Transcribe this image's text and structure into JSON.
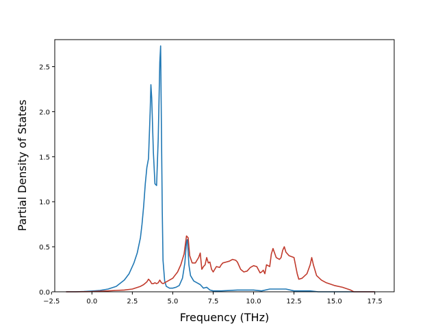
{
  "chart_data": {
    "type": "line",
    "xlabel": "Frequency (THz)",
    "ylabel": "Partial Density of States",
    "xlim": [
      -2.3,
      18.7
    ],
    "ylim": [
      0.0,
      2.8
    ],
    "xticks": [
      "−2.5",
      "0.0",
      "2.5",
      "5.0",
      "7.5",
      "10.0",
      "12.5",
      "15.0",
      "17.5"
    ],
    "xtick_values": [
      -2.5,
      0.0,
      2.5,
      5.0,
      7.5,
      10.0,
      12.5,
      15.0,
      17.5
    ],
    "yticks": [
      "0.0",
      "0.5",
      "1.0",
      "1.5",
      "2.0",
      "2.5"
    ],
    "ytick_values": [
      0.0,
      0.5,
      1.0,
      1.5,
      2.0,
      2.5
    ],
    "grid": false,
    "series": [
      {
        "color": "#1f77b4",
        "x": [
          -1.6,
          -1.0,
          -0.5,
          0.0,
          0.5,
          1.0,
          1.5,
          2.0,
          2.3,
          2.6,
          2.8,
          3.0,
          3.1,
          3.2,
          3.3,
          3.4,
          3.5,
          3.6,
          3.65,
          3.7,
          3.8,
          3.9,
          4.0,
          4.1,
          4.2,
          4.25,
          4.3,
          4.35,
          4.4,
          4.5,
          4.6,
          4.8,
          5.0,
          5.2,
          5.4,
          5.6,
          5.75,
          5.85,
          5.9,
          5.95,
          6.0,
          6.1,
          6.3,
          6.5,
          6.7,
          6.9,
          7.1,
          7.3,
          7.5,
          8.0,
          9.0,
          10.0,
          10.5,
          11.0,
          11.5,
          12.0,
          12.5,
          13.0,
          13.5,
          14.0,
          15.0,
          16.0,
          17.5
        ],
        "y": [
          0.0,
          0.0,
          0.003,
          0.008,
          0.015,
          0.03,
          0.06,
          0.13,
          0.2,
          0.32,
          0.43,
          0.6,
          0.75,
          0.95,
          1.2,
          1.38,
          1.48,
          2.0,
          2.3,
          2.15,
          1.55,
          1.2,
          1.18,
          1.7,
          2.55,
          2.73,
          1.8,
          0.9,
          0.35,
          0.12,
          0.06,
          0.04,
          0.04,
          0.05,
          0.07,
          0.15,
          0.32,
          0.55,
          0.58,
          0.45,
          0.3,
          0.18,
          0.12,
          0.1,
          0.08,
          0.04,
          0.05,
          0.02,
          0.01,
          0.01,
          0.02,
          0.02,
          0.01,
          0.03,
          0.03,
          0.03,
          0.01,
          0.01,
          0.01,
          0.0,
          0.0,
          0.0,
          0.0
        ]
      },
      {
        "color": "#c0392b",
        "x": [
          -1.6,
          -1.0,
          0.0,
          1.0,
          1.5,
          2.0,
          2.5,
          3.0,
          3.2,
          3.4,
          3.5,
          3.6,
          3.7,
          3.8,
          3.9,
          4.0,
          4.1,
          4.2,
          4.3,
          4.4,
          4.5,
          4.7,
          5.0,
          5.3,
          5.5,
          5.7,
          5.85,
          5.95,
          6.05,
          6.2,
          6.4,
          6.6,
          6.7,
          6.8,
          6.9,
          7.0,
          7.1,
          7.2,
          7.3,
          7.4,
          7.5,
          7.7,
          7.9,
          8.0,
          8.1,
          8.3,
          8.5,
          8.7,
          8.9,
          9.0,
          9.2,
          9.4,
          9.6,
          9.8,
          10.0,
          10.2,
          10.4,
          10.5,
          10.6,
          10.7,
          10.8,
          11.0,
          11.1,
          11.2,
          11.4,
          11.6,
          11.7,
          11.8,
          11.9,
          12.0,
          12.2,
          12.5,
          12.7,
          12.8,
          13.0,
          13.3,
          13.5,
          13.6,
          13.7,
          13.9,
          14.2,
          14.5,
          15.0,
          15.5,
          16.0,
          16.2,
          17.5
        ],
        "y": [
          0.0,
          0.0,
          0.002,
          0.01,
          0.015,
          0.02,
          0.03,
          0.06,
          0.08,
          0.11,
          0.14,
          0.12,
          0.09,
          0.09,
          0.1,
          0.09,
          0.1,
          0.13,
          0.1,
          0.09,
          0.1,
          0.12,
          0.15,
          0.22,
          0.3,
          0.42,
          0.62,
          0.6,
          0.4,
          0.32,
          0.32,
          0.38,
          0.43,
          0.25,
          0.28,
          0.3,
          0.38,
          0.32,
          0.33,
          0.25,
          0.22,
          0.28,
          0.27,
          0.3,
          0.32,
          0.33,
          0.34,
          0.36,
          0.35,
          0.33,
          0.25,
          0.22,
          0.23,
          0.27,
          0.29,
          0.28,
          0.21,
          0.22,
          0.24,
          0.2,
          0.3,
          0.28,
          0.42,
          0.48,
          0.38,
          0.36,
          0.38,
          0.46,
          0.5,
          0.44,
          0.4,
          0.38,
          0.2,
          0.14,
          0.15,
          0.2,
          0.3,
          0.38,
          0.3,
          0.18,
          0.13,
          0.1,
          0.07,
          0.05,
          0.02,
          0.0,
          0.0
        ]
      }
    ]
  }
}
